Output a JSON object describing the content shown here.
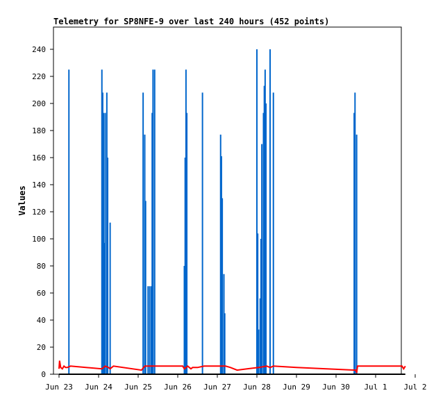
{
  "chart_data": {
    "type": "line",
    "title": "Telemetry for SP8NFE-9 over last 240 hours (452 points)",
    "ylabel": "Values",
    "xlabel": "",
    "ylim": [
      0,
      255
    ],
    "yticks": [
      0,
      20,
      40,
      60,
      80,
      100,
      120,
      140,
      160,
      180,
      200,
      220,
      240
    ],
    "x_ticks": [
      "Jun 23",
      "Jun 24",
      "Jun 25",
      "Jun 26",
      "Jun 27",
      "Jun 28",
      "Jun 29",
      "Jun 30",
      "Jul 1",
      "Jul 2"
    ],
    "grid": false,
    "series": [
      {
        "color": "#0066cc",
        "spikes": [
          [
            "Jun 23 06:00",
            225
          ],
          [
            "Jun 24 02:00",
            225
          ],
          [
            "Jun 24 02:30",
            208
          ],
          [
            "Jun 24 03:00",
            193
          ],
          [
            "Jun 24 03:30",
            97
          ],
          [
            "Jun 24 04:00",
            193
          ],
          [
            "Jun 24 05:00",
            208
          ],
          [
            "Jun 24 05:30",
            160
          ],
          [
            "Jun 24 07:00",
            112
          ],
          [
            "Jun 25 03:00",
            208
          ],
          [
            "Jun 25 04:00",
            177
          ],
          [
            "Jun 25 04:30",
            128
          ],
          [
            "Jun 25 06:00",
            65
          ],
          [
            "Jun 25 07:00",
            65
          ],
          [
            "Jun 25 08:00",
            65
          ],
          [
            "Jun 25 08:30",
            193
          ],
          [
            "Jun 25 09:00",
            225
          ],
          [
            "Jun 25 10:00",
            225
          ],
          [
            "Jun 26 04:00",
            80
          ],
          [
            "Jun 26 04:30",
            160
          ],
          [
            "Jun 26 05:00",
            225
          ],
          [
            "Jun 26 05:30",
            193
          ],
          [
            "Jun 26 15:00",
            208
          ],
          [
            "Jun 27 02:00",
            177
          ],
          [
            "Jun 27 02:30",
            161
          ],
          [
            "Jun 27 03:00",
            130
          ],
          [
            "Jun 27 04:00",
            74
          ],
          [
            "Jun 27 04:30",
            45
          ],
          [
            "Jun 28 00:00",
            240
          ],
          [
            "Jun 28 00:30",
            104
          ],
          [
            "Jun 28 01:00",
            33
          ],
          [
            "Jun 28 02:00",
            56
          ],
          [
            "Jun 28 02:30",
            100
          ],
          [
            "Jun 28 03:00",
            170
          ],
          [
            "Jun 28 04:00",
            193
          ],
          [
            "Jun 28 04:30",
            213
          ],
          [
            "Jun 28 05:00",
            225
          ],
          [
            "Jun 28 05:30",
            200
          ],
          [
            "Jun 28 08:00",
            240
          ],
          [
            "Jun 28 10:00",
            208
          ],
          [
            "Jun 30 11:00",
            193
          ],
          [
            "Jun 30 11:30",
            208
          ],
          [
            "Jun 30 12:30",
            177
          ]
        ]
      },
      {
        "color": "#ff0000",
        "points": [
          [
            "Jun 23 00:00",
            4
          ],
          [
            "Jun 23 00:20",
            10
          ],
          [
            "Jun 23 01:00",
            5
          ],
          [
            "Jun 23 02:00",
            4
          ],
          [
            "Jun 23 03:00",
            6
          ],
          [
            "Jun 23 04:00",
            5
          ],
          [
            "Jun 23 05:00",
            5
          ],
          [
            "Jun 23 07:00",
            6
          ],
          [
            "Jun 24 02:00",
            4
          ],
          [
            "Jun 24 04:00",
            6
          ],
          [
            "Jun 24 06:00",
            5
          ],
          [
            "Jun 24 07:00",
            4
          ],
          [
            "Jun 24 09:00",
            6
          ],
          [
            "Jun 25 02:00",
            3
          ],
          [
            "Jun 25 04:00",
            6
          ],
          [
            "Jun 26 03:00",
            6
          ],
          [
            "Jun 26 04:00",
            4
          ],
          [
            "Jun 26 06:00",
            6
          ],
          [
            "Jun 26 08:00",
            4
          ],
          [
            "Jun 26 09:00",
            5
          ],
          [
            "Jun 26 12:00",
            5
          ],
          [
            "Jun 26 16:00",
            6
          ],
          [
            "Jun 27 05:00",
            6
          ],
          [
            "Jun 27 08:00",
            5
          ],
          [
            "Jun 27 12:00",
            3
          ],
          [
            "Jun 27 18:00",
            4
          ],
          [
            "Jun 28 01:00",
            5
          ],
          [
            "Jun 28 06:00",
            6
          ],
          [
            "Jun 28 08:00",
            5
          ],
          [
            "Jun 28 10:00",
            6
          ],
          [
            "Jun 29 00:00",
            5
          ],
          [
            "Jun 30 12:00",
            3
          ],
          [
            "Jun 30 12:30",
            1
          ],
          [
            "Jun 30 13:00",
            6
          ],
          [
            "Jul 1 16:00",
            6
          ],
          [
            "Jul 1 17:00",
            4
          ],
          [
            "Jul 1 18:00",
            6
          ]
        ]
      },
      {
        "color": "#000000",
        "points": [
          [
            "Jun 23 00:00",
            0
          ],
          [
            "Jul 1 18:00",
            0
          ]
        ]
      }
    ]
  }
}
